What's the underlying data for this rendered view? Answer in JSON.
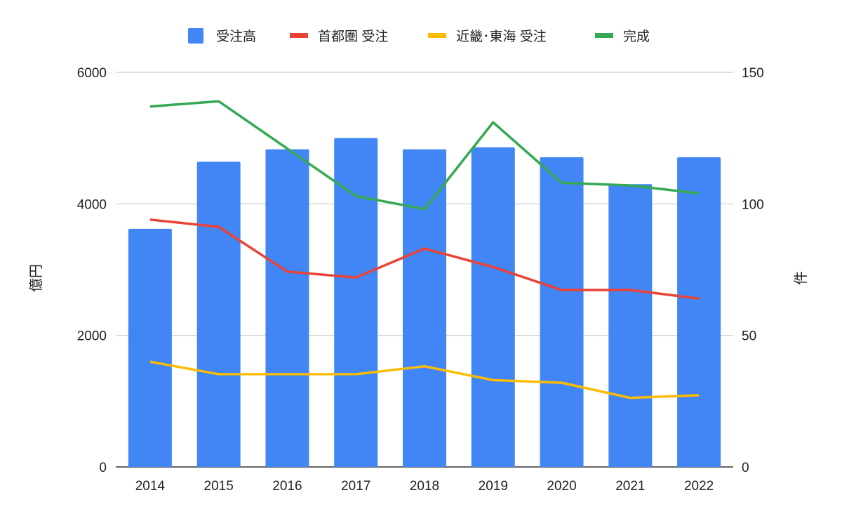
{
  "chart_data": {
    "type": "bar",
    "title": "",
    "categories": [
      "2014",
      "2015",
      "2016",
      "2017",
      "2018",
      "2019",
      "2020",
      "2021",
      "2022"
    ],
    "ylabel": "億円",
    "y2label": "件",
    "ylim": [
      0,
      6000
    ],
    "y2lim": [
      0,
      150
    ],
    "yticks": [
      0,
      2000,
      4000,
      6000
    ],
    "y2ticks": [
      0,
      50,
      100,
      150
    ],
    "grid": true,
    "legend_position": "top",
    "series": [
      {
        "name": "受注高",
        "type": "bar",
        "axis": "left",
        "color": "#4285f4",
        "values": [
          3620,
          4640,
          4830,
          5000,
          4830,
          4860,
          4710,
          4300,
          4710
        ]
      },
      {
        "name": "首都圏 受注",
        "type": "line",
        "axis": "left",
        "color": "#ea4335",
        "values": [
          3760,
          3650,
          2970,
          2880,
          3320,
          3040,
          2690,
          2690,
          2560
        ]
      },
      {
        "name": "近畿･東海 受注",
        "type": "line",
        "axis": "left",
        "color": "#fbbc04",
        "values": [
          1600,
          1410,
          1410,
          1410,
          1530,
          1320,
          1280,
          1050,
          1090
        ]
      },
      {
        "name": "完成",
        "type": "line",
        "axis": "right",
        "color": "#34a853",
        "values": [
          137,
          139,
          121,
          103,
          98,
          131,
          108,
          107,
          104
        ]
      }
    ]
  }
}
